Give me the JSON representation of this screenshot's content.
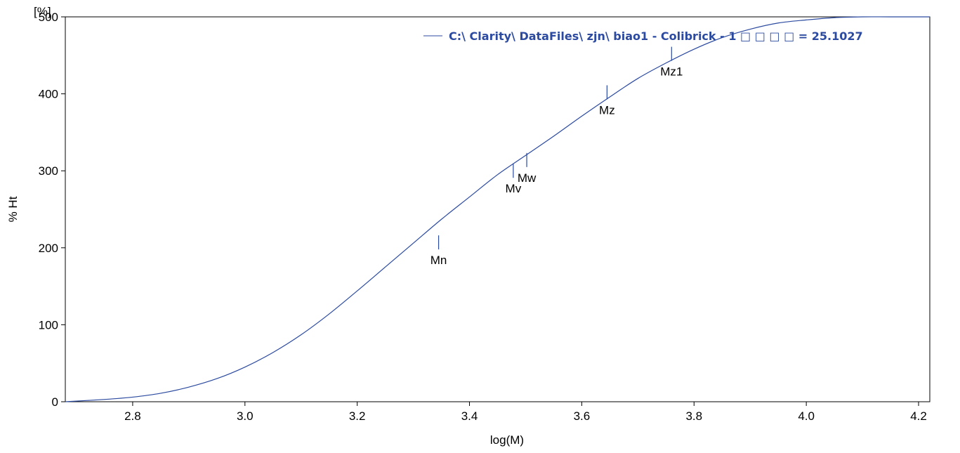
{
  "chart_data": {
    "type": "line",
    "xlabel": "log(M)",
    "ylabel": "% Ht",
    "y_unit": "[%]",
    "xlim": [
      2.68,
      4.22
    ],
    "ylim": [
      0,
      500
    ],
    "x_ticks": [
      "2.8",
      "3.0",
      "3.2",
      "3.4",
      "3.6",
      "3.8",
      "4.0",
      "4.2"
    ],
    "y_ticks": [
      "0",
      "100",
      "200",
      "300",
      "400",
      "500"
    ],
    "grid": false,
    "legend_position": "top-right",
    "series": [
      {
        "name": "C:\\ Clarity\\ DataFiles\\ zjn\\ biao1 - Colibrick - 1 □ □ □ □ = 25.1027",
        "color": "#2b4aa0",
        "x": [
          2.68,
          2.75,
          2.8,
          2.85,
          2.9,
          2.95,
          3.0,
          3.05,
          3.1,
          3.15,
          3.2,
          3.25,
          3.3,
          3.35,
          3.4,
          3.45,
          3.5,
          3.55,
          3.6,
          3.65,
          3.7,
          3.75,
          3.8,
          3.85,
          3.9,
          3.95,
          4.0,
          4.05,
          4.1,
          4.15,
          4.22
        ],
        "y": [
          0,
          3,
          6,
          11,
          19,
          30,
          45,
          64,
          87,
          114,
          144,
          175,
          206,
          237,
          266,
          295,
          320,
          345,
          371,
          396,
          420,
          440,
          458,
          473,
          484,
          492,
          496,
          499,
          500,
          500,
          500
        ]
      }
    ],
    "markers": [
      {
        "label": "Mn",
        "x": 3.345,
        "y": 207
      },
      {
        "label": "Mv",
        "x": 3.478,
        "y": 300
      },
      {
        "label": "Mw",
        "x": 3.502,
        "y": 314
      },
      {
        "label": "Mz",
        "x": 3.645,
        "y": 402
      },
      {
        "label": "Mz1",
        "x": 3.76,
        "y": 452
      }
    ]
  }
}
